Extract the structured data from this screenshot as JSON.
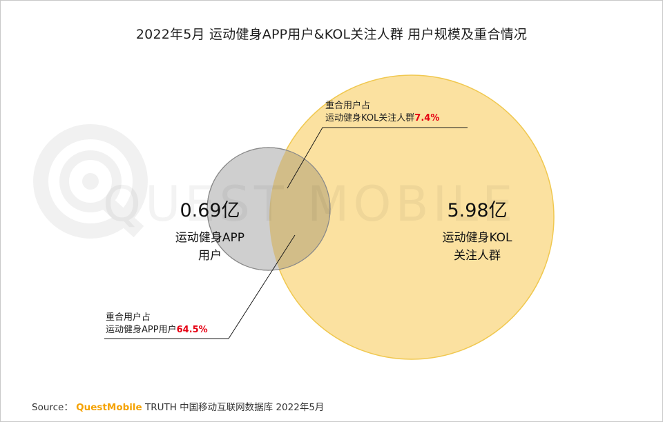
{
  "title": "2022年5月 运动健身APP用户&KOL关注人群 用户规模及重合情况",
  "watermark": "QUEST MOBILE",
  "colors": {
    "app_circle": "#cfcfcf",
    "kol_circle": "#fbe1a0",
    "kol_outline": "#f0c850",
    "overlap": "#d2bd88",
    "highlight": "#e60012",
    "brand": "#f5a200"
  },
  "chart_data": {
    "type": "venn",
    "sets": [
      {
        "name": "运动健身APP用户",
        "value": 0.69,
        "value_label": "0.69亿",
        "label_lines": [
          "运动健身APP",
          "用户"
        ]
      },
      {
        "name": "运动健身KOL关注人群",
        "value": 5.98,
        "value_label": "5.98亿",
        "label_lines": [
          "运动健身KOL",
          "关注人群"
        ]
      }
    ],
    "overlap": {
      "share_of_kol_pct": 7.4,
      "share_of_app_pct": 64.5
    }
  },
  "callouts": {
    "kol": {
      "line1": "重合用户占",
      "line2_prefix": "运动健身KOL关注人群",
      "line2_value": "7.4%"
    },
    "app": {
      "line1": "重合用户占",
      "line2_prefix": "运动健身APP用户",
      "line2_value": "64.5%"
    }
  },
  "source": {
    "prefix": "Source：",
    "brand": "QuestMobile",
    "rest": "TRUTH 中国移动互联网数据库 2022年5月"
  }
}
